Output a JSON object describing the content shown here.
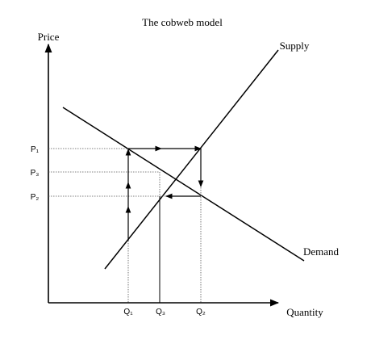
{
  "title": "The cobweb model",
  "y_axis_label": "Price",
  "x_axis_label": "Quantity",
  "curves": {
    "supply": "Supply",
    "demand": "Demand"
  },
  "price_labels": [
    "P₁",
    "P₃",
    "P₂"
  ],
  "quantity_labels": [
    "Q₁",
    "Q₃",
    "Q₂"
  ]
}
